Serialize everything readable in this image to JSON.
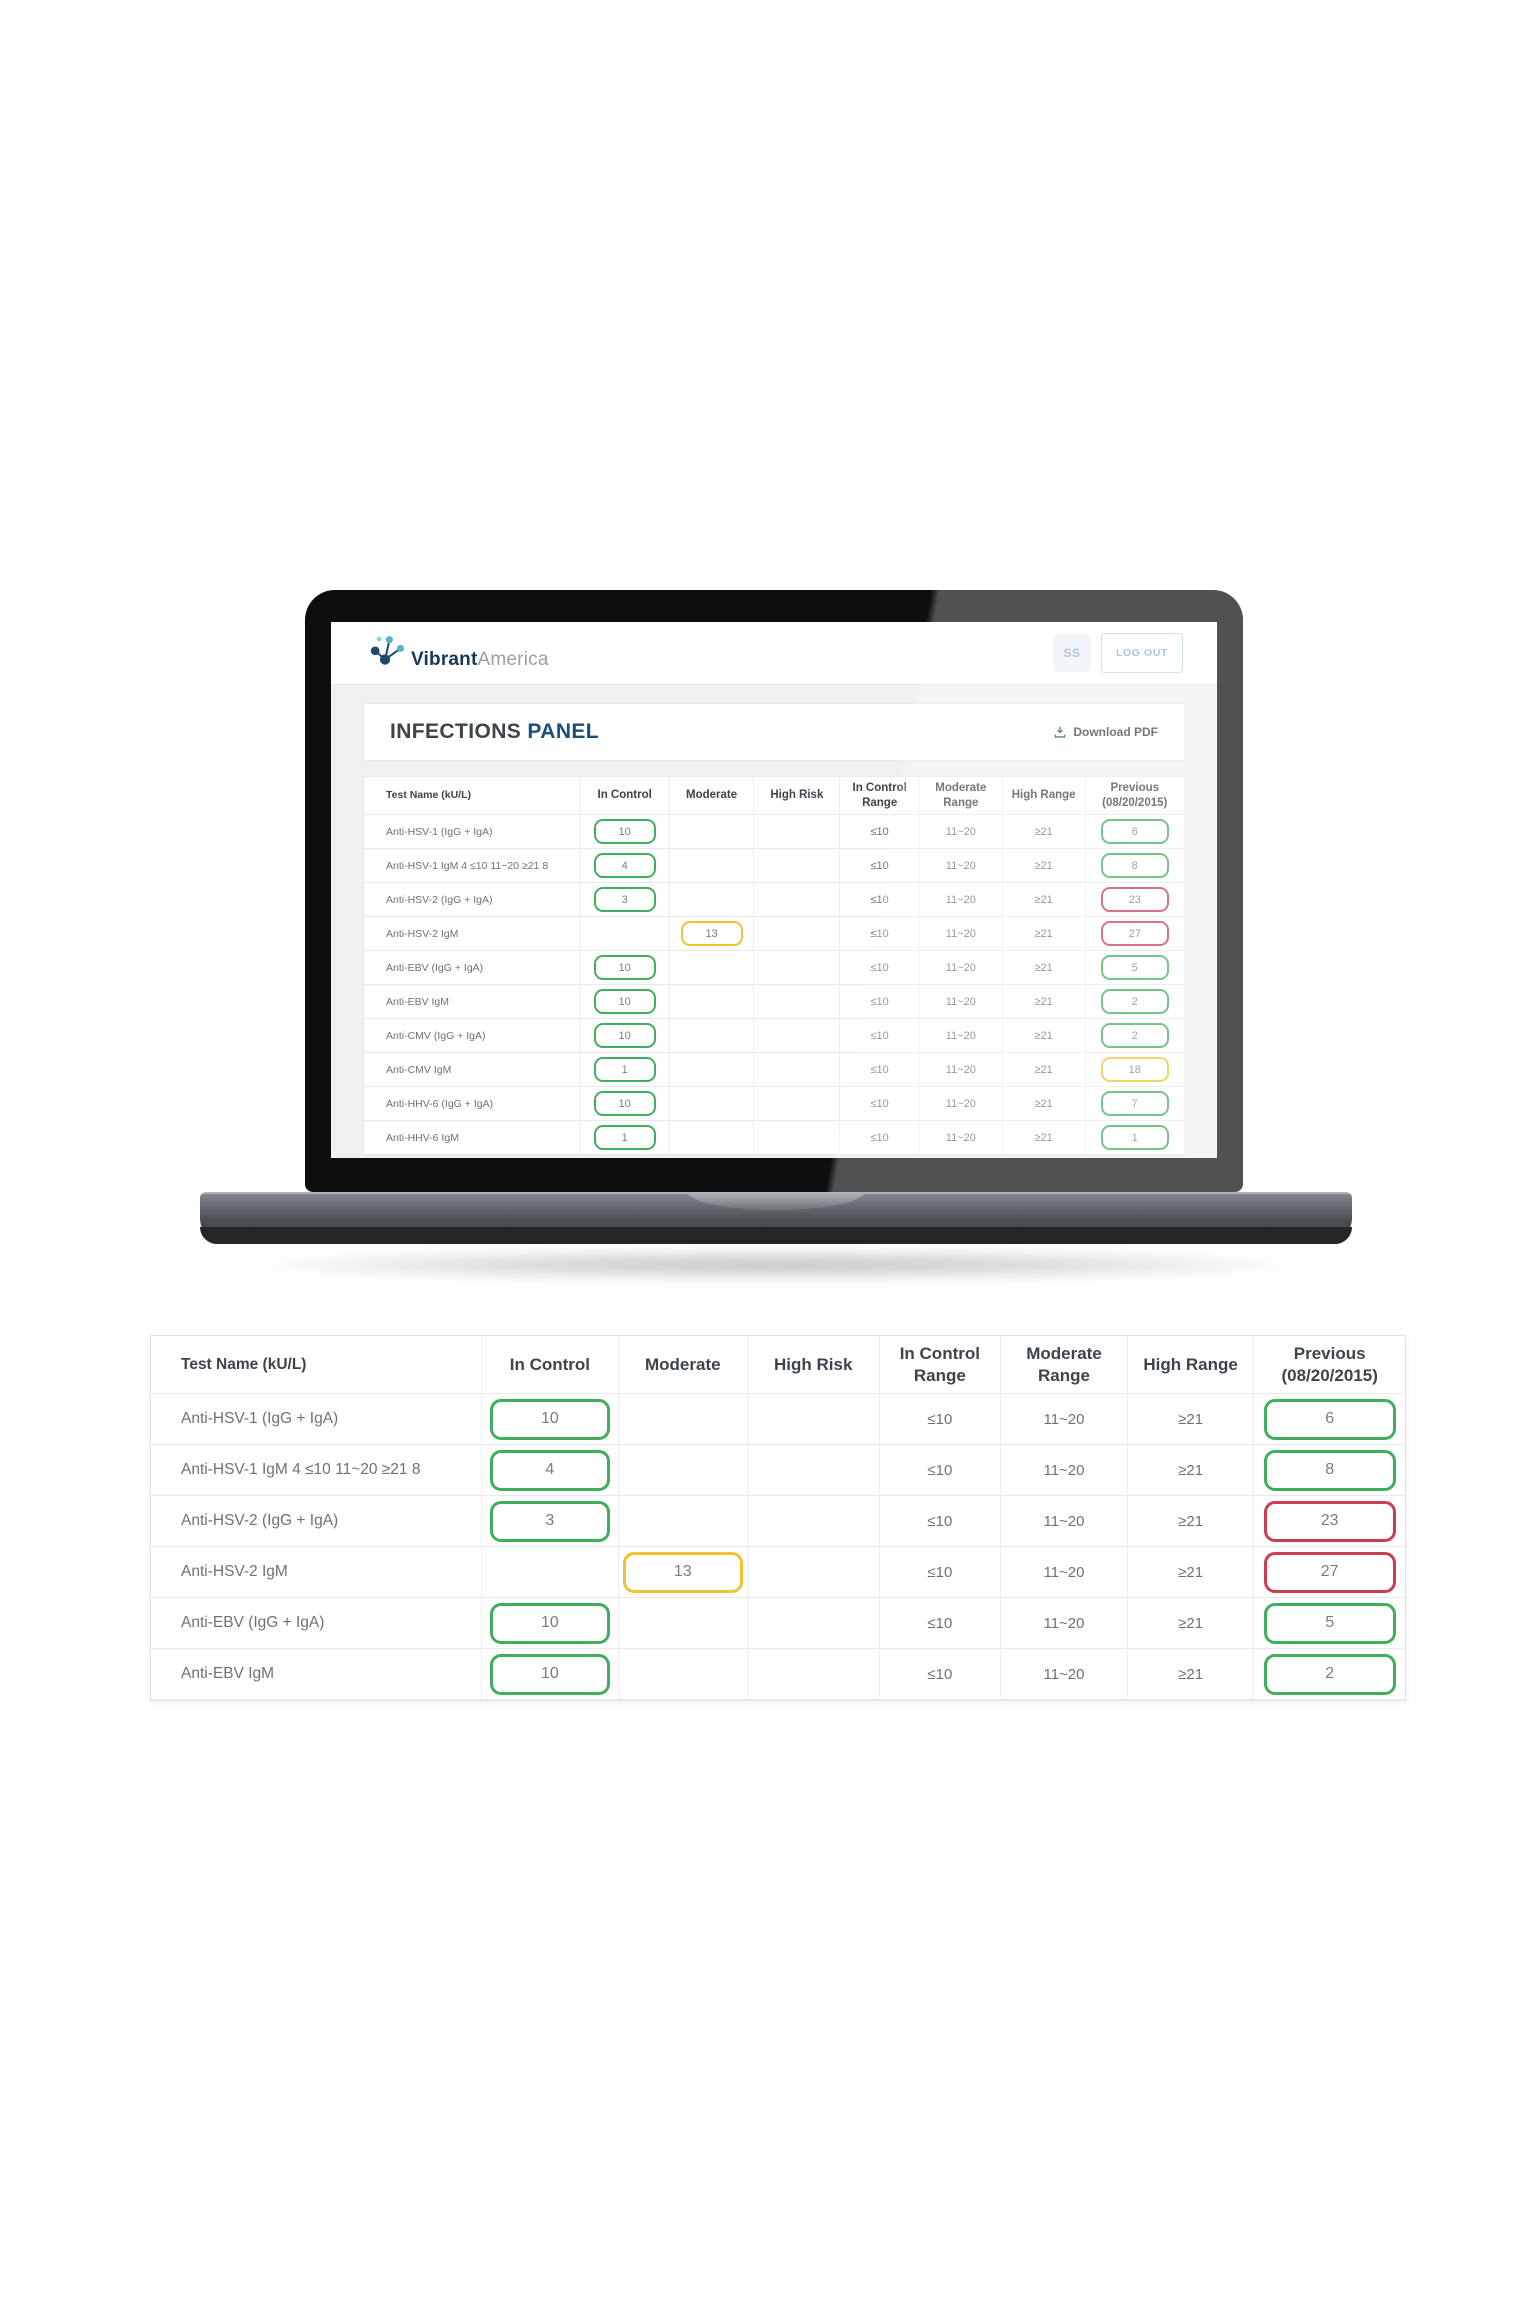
{
  "colors": {
    "green": "#41ae5d",
    "yellow": "#f2c230",
    "red": "#cb3d53",
    "navy": "#1d4e79",
    "light_blue": "#86b0d4",
    "header_text": "#3d444b",
    "body_text": "#6d7276"
  },
  "laptop": {
    "header": {
      "brand_bold": "Vibrant",
      "brand_light": "America",
      "user_initials": "SS",
      "logout_label": "LOG OUT"
    },
    "panel": {
      "title_primary": "INFECTIONS",
      "title_secondary": "PANEL",
      "download_label": "Download PDF"
    }
  },
  "table": {
    "columns": [
      "Test Name (kU/L)",
      "In Control",
      "Moderate",
      "High Risk",
      "In Control Range",
      "Moderate Range",
      "High Range",
      "Previous (08/20/2015)"
    ],
    "rows": [
      {
        "name": "Anti-HSV-1 (IgG + IgA)",
        "value": "10",
        "value_col": "in_control",
        "value_status": "green",
        "in_control_range": "≤10",
        "moderate_range": "11~20",
        "high_range": "≥21",
        "previous": "6",
        "previous_status": "green"
      },
      {
        "name": "Anti-HSV-1 IgM 4 ≤10 11~20 ≥21 8",
        "value": "4",
        "value_col": "in_control",
        "value_status": "green",
        "in_control_range": "≤10",
        "moderate_range": "11~20",
        "high_range": "≥21",
        "previous": "8",
        "previous_status": "green"
      },
      {
        "name": "Anti-HSV-2 (IgG + IgA)",
        "value": "3",
        "value_col": "in_control",
        "value_status": "green",
        "in_control_range": "≤10",
        "moderate_range": "11~20",
        "high_range": "≥21",
        "previous": "23",
        "previous_status": "red"
      },
      {
        "name": "Anti-HSV-2 IgM",
        "value": "13",
        "value_col": "moderate",
        "value_status": "yellow",
        "in_control_range": "≤10",
        "moderate_range": "11~20",
        "high_range": "≥21",
        "previous": "27",
        "previous_status": "red"
      },
      {
        "name": "Anti-EBV (IgG + IgA)",
        "value": "10",
        "value_col": "in_control",
        "value_status": "green",
        "in_control_range": "≤10",
        "moderate_range": "11~20",
        "high_range": "≥21",
        "previous": "5",
        "previous_status": "green"
      },
      {
        "name": "Anti-EBV IgM",
        "value": "10",
        "value_col": "in_control",
        "value_status": "green",
        "in_control_range": "≤10",
        "moderate_range": "11~20",
        "high_range": "≥21",
        "previous": "2",
        "previous_status": "green"
      },
      {
        "name": "Anti-CMV (IgG + IgA)",
        "value": "10",
        "value_col": "in_control",
        "value_status": "green",
        "in_control_range": "≤10",
        "moderate_range": "11~20",
        "high_range": "≥21",
        "previous": "2",
        "previous_status": "green"
      },
      {
        "name": "Anti-CMV IgM",
        "value": "1",
        "value_col": "in_control",
        "value_status": "green",
        "in_control_range": "≤10",
        "moderate_range": "11~20",
        "high_range": "≥21",
        "previous": "18",
        "previous_status": "yellow"
      },
      {
        "name": "Anti-HHV-6 (IgG + IgA)",
        "value": "10",
        "value_col": "in_control",
        "value_status": "green",
        "in_control_range": "≤10",
        "moderate_range": "11~20",
        "high_range": "≥21",
        "previous": "7",
        "previous_status": "green"
      },
      {
        "name": "Anti-HHV-6 IgM",
        "value": "1",
        "value_col": "in_control",
        "value_status": "green",
        "in_control_range": "≤10",
        "moderate_range": "11~20",
        "high_range": "≥21",
        "previous": "1",
        "previous_status": "green"
      }
    ]
  },
  "zoom_table": {
    "visible_rows": 6
  }
}
